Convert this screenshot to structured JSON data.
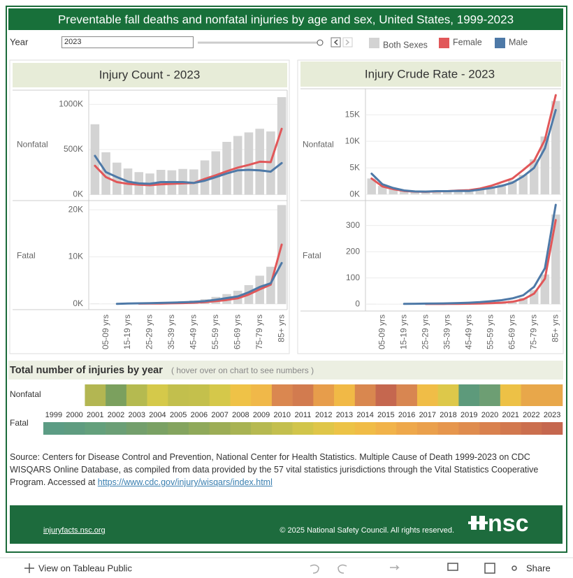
{
  "title": "Preventable fall deaths and nonfatal injuries by age and sex, United States, 1999-2023",
  "filter": {
    "label": "Year",
    "value": "2023"
  },
  "chart_data": [
    {
      "type": "combo",
      "title": "Injury Count - 2023",
      "ylabel": "Nonfatal",
      "ylim": [
        -50000,
        1150000
      ],
      "yticks": [
        {
          "value": 0,
          "label": "0K"
        },
        {
          "value": 500000,
          "label": "500K"
        },
        {
          "value": 1000000,
          "label": "1000K"
        }
      ],
      "grid": true,
      "series": [
        {
          "name": "Both Sexes",
          "type": "bar",
          "color": "#d3d3d3",
          "values": [
            780000,
            470000,
            355000,
            290000,
            250000,
            235000,
            275000,
            270000,
            285000,
            280000,
            380000,
            480000,
            585000,
            650000,
            690000,
            730000,
            700000,
            1080000
          ]
        },
        {
          "name": "Female",
          "type": "line",
          "color": "#e15759",
          "values": [
            320000,
            195000,
            140000,
            120000,
            110000,
            105000,
            115000,
            120000,
            125000,
            130000,
            175000,
            215000,
            260000,
            300000,
            330000,
            365000,
            360000,
            730000
          ]
        },
        {
          "name": "Male",
          "type": "line",
          "color": "#4e79a7",
          "values": [
            430000,
            250000,
            195000,
            145000,
            125000,
            120000,
            140000,
            140000,
            140000,
            130000,
            155000,
            195000,
            235000,
            270000,
            275000,
            270000,
            255000,
            350000
          ]
        }
      ]
    },
    {
      "type": "combo",
      "ylabel": "Fatal",
      "ylim": [
        -1200,
        21500
      ],
      "yticks": [
        {
          "value": 0,
          "label": "0K"
        },
        {
          "value": 10000,
          "label": "10K"
        },
        {
          "value": 20000,
          "label": "20K"
        }
      ],
      "grid": true,
      "categories": [
        null,
        "05-09 yrs",
        null,
        "15-19 yrs",
        null,
        "25-29 yrs",
        null,
        "35-39 yrs",
        null,
        "45-49 yrs",
        null,
        "55-59 yrs",
        null,
        "65-69 yrs",
        null,
        "75-79 yrs",
        null,
        "85+ yrs"
      ],
      "series": [
        {
          "type": "bar",
          "color": "#d3d3d3",
          "values": [
            60,
            30,
            40,
            130,
            200,
            260,
            330,
            430,
            560,
            720,
            1000,
            1500,
            2100,
            2800,
            4000,
            6000,
            7900,
            21000
          ]
        },
        {
          "type": "line",
          "color": "#e15759",
          "values": [
            null,
            null,
            null,
            null,
            70,
            90,
            110,
            150,
            200,
            270,
            400,
            600,
            850,
            1200,
            2000,
            3100,
            4100,
            12600
          ]
        },
        {
          "type": "line",
          "color": "#4e79a7",
          "values": [
            40,
            null,
            30,
            100,
            130,
            170,
            220,
            280,
            360,
            450,
            600,
            900,
            1250,
            1600,
            2500,
            3600,
            4400,
            8700
          ]
        }
      ]
    },
    {
      "type": "combo",
      "title": "Injury Crude Rate - 2023",
      "ylabel": "Nonfatal",
      "ylim": [
        -900,
        19500
      ],
      "yticks": [
        {
          "value": 0,
          "label": "0K"
        },
        {
          "value": 5000,
          "label": "5K"
        },
        {
          "value": 10000,
          "label": "10K"
        },
        {
          "value": 15000,
          "label": "15K"
        }
      ],
      "grid": true,
      "series": [
        {
          "type": "bar",
          "color": "#d3d3d3",
          "values": [
            3000,
            1600,
            1100,
            700,
            550,
            520,
            600,
            620,
            700,
            720,
            1000,
            1400,
            1900,
            2600,
            3700,
            6600,
            10900,
            17600
          ]
        },
        {
          "type": "line",
          "color": "#e15759",
          "values": [
            3000,
            1500,
            1000,
            650,
            530,
            500,
            580,
            620,
            730,
            800,
            1100,
            1600,
            2300,
            3000,
            4600,
            6300,
            10300,
            18700
          ]
        },
        {
          "type": "line",
          "color": "#4e79a7",
          "values": [
            3900,
            1900,
            1200,
            750,
            560,
            540,
            620,
            620,
            660,
            640,
            900,
            1200,
            1600,
            2200,
            3400,
            5000,
            8700,
            15900
          ]
        }
      ]
    },
    {
      "type": "combo",
      "ylabel": "Fatal",
      "ylim": [
        -21,
        387
      ],
      "yticks": [
        0,
        100,
        200,
        300
      ],
      "grid": true,
      "categories": [
        null,
        "05-09 yrs",
        null,
        "15-19 yrs",
        null,
        "25-29 yrs",
        null,
        "35-39 yrs",
        null,
        "45-49 yrs",
        null,
        "55-59 yrs",
        null,
        "65-69 yrs",
        null,
        "75-79 yrs",
        null,
        "85+ yrs"
      ],
      "series": [
        {
          "type": "bar",
          "color": "#d3d3d3",
          "values": [
            0.5,
            0.2,
            0.2,
            0.6,
            1,
            1.3,
            1.5,
            2,
            2.5,
            3.5,
            5,
            7,
            10,
            13,
            24,
            53,
            113,
            342
          ]
        },
        {
          "type": "line",
          "color": "#e15759",
          "values": [
            null,
            null,
            null,
            null,
            null,
            0.5,
            0.6,
            0.8,
            1.1,
            1.6,
            2.3,
            3.6,
            5.5,
            9,
            18,
            40,
            97,
            321
          ]
        },
        {
          "type": "line",
          "color": "#4e79a7",
          "values": [
            null,
            null,
            null,
            0.9,
            1.5,
            1.9,
            2.3,
            3,
            4,
            5.5,
            7.6,
            11,
            15,
            22,
            34,
            66,
            137,
            379
          ]
        }
      ]
    },
    {
      "type": "heatmap",
      "title": "Total number of injuries by year",
      "subtitle": "( hover over on chart to see numbers )",
      "categories": [
        "1999",
        "2000",
        "2001",
        "2002",
        "2003",
        "2004",
        "2005",
        "2006",
        "2007",
        "2008",
        "2009",
        "2010",
        "2011",
        "2012",
        "2013",
        "2014",
        "2015",
        "2016",
        "2017",
        "2018",
        "2019",
        "2020",
        "2021",
        "2022",
        "2023"
      ],
      "rows": [
        {
          "name": "Nonfatal",
          "colors": [
            null,
            null,
            "#b3b652",
            "#7ba05e",
            "#b5ba50",
            "#d5c94a",
            "#c2bf4d",
            "#c4c04c",
            "#d5c84a",
            "#efc247",
            "#f0b849",
            "#da8750",
            "#d27b4f",
            "#e79d4b",
            "#f1b946",
            "#d9874f",
            "#c5674f",
            "#d88651",
            "#f0bd47",
            "#ddc84a",
            "#5d9a7b",
            "#6d9e73",
            "#edc146",
            "#e8a74a",
            "#e8a74a"
          ]
        },
        {
          "name": "Fatal",
          "colors": [
            "#5c9c84",
            "#5f9c80",
            "#64a07c",
            "#6b9f76",
            "#739f6c",
            "#7aa164",
            "#84a45f",
            "#8fa95a",
            "#9cad56",
            "#a8b353",
            "#b6b951",
            "#c3bf4e",
            "#d1c54b",
            "#dfc649",
            "#ecc347",
            "#f0bc47",
            "#f1b34a",
            "#eea84b",
            "#eaa04c",
            "#e6964d",
            "#df8c4e",
            "#d9814e",
            "#d2784e",
            "#cb6f4e",
            "#c5674e"
          ]
        }
      ]
    }
  ],
  "source": "Source: Centers for Disease Control and Prevention, National Center for Health Statistics. Multiple Cause of Death 1999-2023 on CDC WISQARS Online Database, as compiled from data provided by the 57 vital statistics jurisdictions through the Vital Statistics Cooperative Program. Accessed at",
  "source_link": "https://www.cdc.gov/injury/wisqars/index.html",
  "footer": {
    "site": "injuryfacts.nsc.org",
    "copyright": "© 2025 National Safety Council. All rights reserved.",
    "logo": "nsc"
  },
  "toolbar": {
    "view": "View on Tableau Public",
    "share": "Share"
  }
}
